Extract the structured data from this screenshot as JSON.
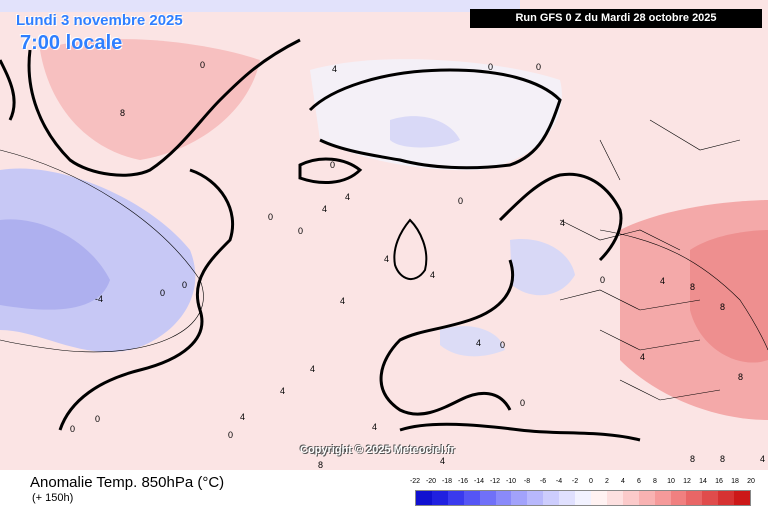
{
  "header": {
    "date": "Lundi 3 novembre 2025",
    "local_time": "7:00 locale",
    "run_info": "Run GFS 0 Z du Mardi 28 octobre 2025"
  },
  "map": {
    "region": "North Atlantic / Europe",
    "contour_labels": [
      "0",
      "4",
      "8",
      "-4"
    ],
    "copyright": "Copyright © 2025 Meteociel.fr"
  },
  "footer": {
    "parameter": "Anomalie Temp. 850hPa (°C)",
    "lead_time": "(+ 150h)"
  },
  "legend": {
    "ticks": [
      "-22",
      "-20",
      "-18",
      "-16",
      "-14",
      "-12",
      "-10",
      "-8",
      "-6",
      "-4",
      "-2",
      "0",
      "2",
      "4",
      "6",
      "8",
      "10",
      "12",
      "14",
      "16",
      "18",
      "20"
    ],
    "colors": [
      "#1010d0",
      "#2020e0",
      "#3a3aee",
      "#5555f5",
      "#7070f8",
      "#8a8afa",
      "#a2a2fb",
      "#b8b8fc",
      "#cdcdfd",
      "#e0e0fe",
      "#f2f2ff",
      "#fff2f2",
      "#fde0e0",
      "#fbcaca",
      "#f8b2b2",
      "#f59a9a",
      "#f08080",
      "#e86666",
      "#e04c4c",
      "#d63232",
      "#cc1818"
    ]
  }
}
